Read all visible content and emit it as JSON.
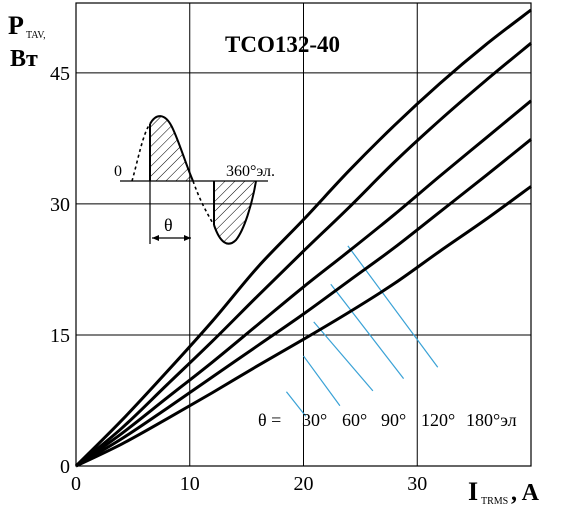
{
  "chart_data": {
    "type": "line",
    "title": "TCO132-40",
    "ylabel_main": "P",
    "ylabel_sub": "TAV,",
    "ylabel_unit": "Вт",
    "xlabel_main": "I",
    "xlabel_sub": "TRMS",
    "xlabel_unit": ", A",
    "xlim": [
      0,
      40
    ],
    "ylim": [
      0,
      53
    ],
    "x_ticks": [
      "0",
      "10",
      "20",
      "30"
    ],
    "x_tick_values": [
      0,
      10,
      20,
      30
    ],
    "y_ticks": [
      "0",
      "15",
      "30",
      "45"
    ],
    "y_tick_values": [
      0,
      15,
      30,
      45
    ],
    "grid": true,
    "series": [
      {
        "name": "30°",
        "x": [
          0,
          4,
          8,
          12,
          16,
          20,
          24,
          28,
          32,
          36,
          40
        ],
        "y": [
          0,
          5.2,
          10.8,
          16.6,
          22.8,
          28.2,
          33.8,
          39.0,
          43.8,
          48.2,
          52.2
        ]
      },
      {
        "name": "60°",
        "x": [
          0,
          4,
          8,
          12,
          16,
          20,
          24,
          28,
          32,
          36,
          40
        ],
        "y": [
          0,
          4.3,
          9.3,
          14.3,
          19.5,
          24.6,
          29.6,
          34.8,
          39.6,
          44.1,
          48.4
        ]
      },
      {
        "name": "90°",
        "x": [
          0,
          4,
          8,
          12,
          16,
          20,
          24,
          28,
          32,
          36,
          40
        ],
        "y": [
          0,
          3.7,
          7.8,
          11.9,
          16.2,
          20.5,
          24.6,
          28.8,
          33.2,
          37.5,
          41.8
        ]
      },
      {
        "name": "120°",
        "x": [
          0,
          4,
          8,
          12,
          16,
          20,
          24,
          28,
          32,
          36,
          40
        ],
        "y": [
          0,
          3.1,
          6.6,
          10.2,
          13.8,
          17.4,
          21.2,
          25.0,
          29.1,
          33.2,
          37.4
        ]
      },
      {
        "name": "180°",
        "x": [
          0,
          4,
          8,
          12,
          16,
          20,
          24,
          28,
          32,
          36,
          40
        ],
        "y": [
          0,
          2.5,
          5.4,
          8.4,
          11.5,
          14.5,
          17.6,
          20.9,
          24.6,
          28.2,
          32.0
        ]
      }
    ],
    "leader_lines": [
      {
        "label": "30°",
        "from": [
          23.9,
          25.2
        ],
        "to": [
          31.8,
          11.3
        ]
      },
      {
        "label": "60°",
        "from": [
          22.4,
          20.8
        ],
        "to": [
          28.8,
          10.0
        ]
      },
      {
        "label": "90°",
        "from": [
          20.9,
          16.5
        ],
        "to": [
          26.1,
          8.6
        ]
      },
      {
        "label": "120°",
        "from": [
          20.0,
          12.6
        ],
        "to": [
          23.2,
          6.9
        ]
      },
      {
        "label": "180°",
        "from": [
          18.5,
          8.5
        ],
        "to": [
          20.2,
          5.7
        ]
      }
    ],
    "angle_legend": {
      "prefix": "θ =",
      "labels": [
        "30°",
        "60°",
        "90°",
        "120°",
        "180°эл"
      ]
    },
    "colors": {
      "curve": "#000000",
      "leader": "#3aa2d6",
      "grid": "#000000"
    },
    "inset": {
      "start_label": "0",
      "end_label": "360°эл.",
      "theta_label": "θ"
    }
  }
}
